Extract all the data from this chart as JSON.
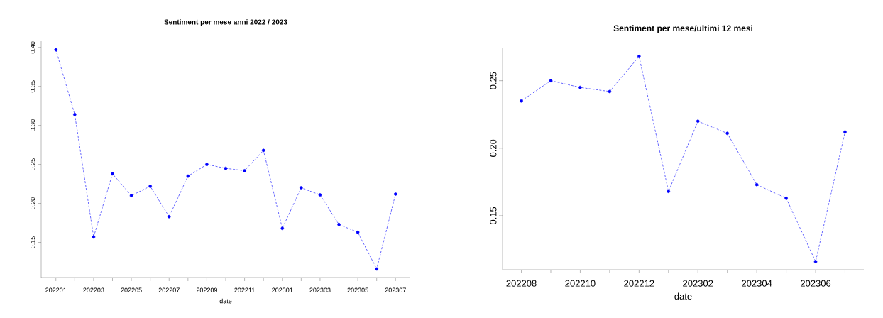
{
  "chart_data": [
    {
      "type": "line",
      "title": "Sentiment per mese anni 2022 / 2023",
      "xlabel": "date",
      "categories": [
        "202201",
        null,
        "202203",
        null,
        "202205",
        null,
        "202207",
        null,
        "202209",
        null,
        "202211",
        null,
        "202301",
        null,
        "202303",
        null,
        "202305",
        null,
        "202307"
      ],
      "series": [
        {
          "color": "#0000ff",
          "values": [
            0.397,
            0.314,
            0.157,
            0.238,
            0.21,
            0.222,
            0.183,
            0.235,
            0.25,
            0.245,
            0.242,
            0.268,
            0.168,
            0.22,
            0.211,
            0.173,
            0.163,
            0.116,
            0.212
          ]
        }
      ],
      "ylim": [
        0.105,
        0.408
      ],
      "yticks": [
        {
          "value": 0.15,
          "label": "0.15"
        },
        {
          "value": 0.2,
          "label": "0.20"
        },
        {
          "value": 0.25,
          "label": "0.25"
        },
        {
          "value": 0.3,
          "label": "0.30"
        },
        {
          "value": 0.35,
          "label": "0.35"
        },
        {
          "value": 0.4,
          "label": "0.40"
        }
      ],
      "marker": "circle",
      "line_style": "dashed",
      "grid": false
    },
    {
      "type": "line",
      "title": "Sentiment per mese/ultimi 12 mesi",
      "xlabel": "date",
      "categories": [
        "202208",
        null,
        "202210",
        null,
        "202212",
        null,
        "202302",
        null,
        "202304",
        null,
        "202306",
        null
      ],
      "series": [
        {
          "color": "#0000ff",
          "values": [
            0.235,
            0.25,
            0.245,
            0.242,
            0.268,
            0.168,
            0.22,
            0.211,
            0.173,
            0.163,
            0.116,
            0.212
          ]
        }
      ],
      "ylim": [
        0.11,
        0.274
      ],
      "yticks": [
        {
          "value": 0.15,
          "label": "0.15"
        },
        {
          "value": 0.2,
          "label": "0.20"
        },
        {
          "value": 0.25,
          "label": "0.25"
        }
      ],
      "marker": "circle",
      "line_style": "dashed",
      "grid": false
    }
  ]
}
